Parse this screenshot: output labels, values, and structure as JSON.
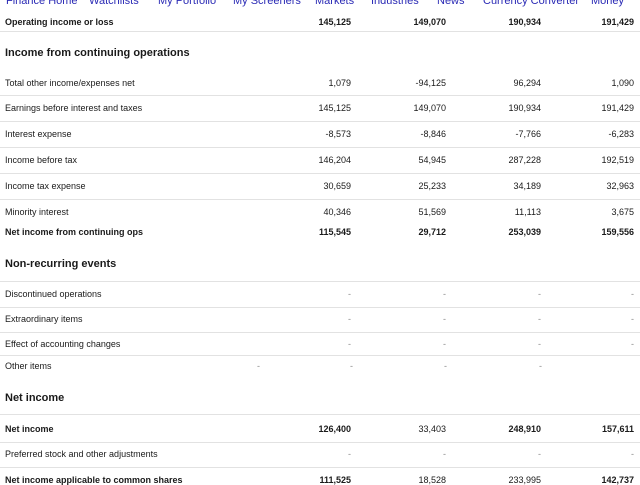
{
  "nav": [
    "Finance Home",
    "Watchlists",
    "My Portfolio",
    "My Screeners",
    "Markets",
    "Industries",
    "News",
    "Currency Converter",
    "Money"
  ],
  "operating_row": {
    "label": "Operating income or loss",
    "values": [
      "145,125",
      "149,070",
      "190,934",
      "191,429"
    ]
  },
  "sections": {
    "continuing": "Income from continuing operations",
    "nonrecurring": "Non-recurring events",
    "net": "Net income"
  },
  "continuing_rows": [
    {
      "label": "Total other income/expenses net",
      "values": [
        "1,079",
        "-94,125",
        "96,294",
        "1,090"
      ]
    },
    {
      "label": "Earnings before interest and taxes",
      "values": [
        "145,125",
        "149,070",
        "190,934",
        "191,429"
      ]
    },
    {
      "label": "Interest expense",
      "values": [
        "-8,573",
        "-8,846",
        "-7,766",
        "-6,283"
      ]
    },
    {
      "label": "Income before tax",
      "values": [
        "146,204",
        "54,945",
        "287,228",
        "192,519"
      ]
    },
    {
      "label": "Income tax expense",
      "values": [
        "30,659",
        "25,233",
        "34,189",
        "32,963"
      ]
    },
    {
      "label": "Minority interest",
      "values": [
        "40,346",
        "51,569",
        "11,113",
        "3,675"
      ]
    },
    {
      "label": "Net income from continuing ops",
      "values": [
        "115,545",
        "29,712",
        "253,039",
        "159,556"
      ]
    }
  ],
  "nonrecurring_rows": [
    {
      "label": "Discontinued operations",
      "values": [
        "-",
        "-",
        "-",
        "-"
      ]
    },
    {
      "label": "Extraordinary items",
      "values": [
        "-",
        "-",
        "-",
        "-"
      ]
    },
    {
      "label": "Effect of accounting changes",
      "values": [
        "-",
        "-",
        "-",
        "-"
      ]
    },
    {
      "label": "Other items",
      "values": [
        "-",
        "-",
        "-",
        "-"
      ]
    }
  ],
  "net_rows": [
    {
      "label": "Net income",
      "values": [
        "126,400",
        "33,403",
        "248,910",
        "157,611"
      ]
    },
    {
      "label": "Preferred stock and other adjustments",
      "values": [
        "-",
        "-",
        "-",
        "-"
      ]
    },
    {
      "label": "Net income applicable to common shares",
      "values": [
        "111,525",
        "18,528",
        "233,995",
        "142,737"
      ]
    }
  ]
}
